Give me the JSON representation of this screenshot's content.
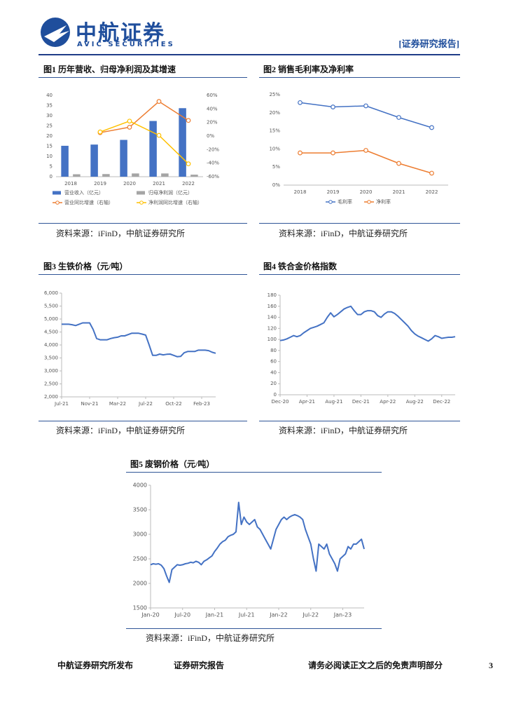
{
  "header": {
    "company": "中航证券",
    "company_en": "AVIC SECURITIES",
    "report_type": "[证券研究报告]"
  },
  "chart_data": [
    {
      "type": "bar",
      "title": "图1 历年营收、归母净利润及其增速",
      "source": "资料来源：iFinD，中航证券研究所",
      "categories": [
        "2018",
        "2019",
        "2020",
        "2021",
        "2022"
      ],
      "series": [
        {
          "name": "营业收入（亿元）",
          "type": "bar",
          "color": "#4472c4",
          "values": [
            15.2,
            15.8,
            18.1,
            27.4,
            33.7
          ]
        },
        {
          "name": "归母净利润（亿元）",
          "type": "bar",
          "color": "#a5a5a5",
          "values": [
            1.2,
            1.3,
            1.6,
            1.6,
            1.0
          ]
        },
        {
          "name": "营业同比增速（右轴）",
          "type": "line",
          "axis": "y2",
          "color": "#ed7d31",
          "values": [
            null,
            5,
            13,
            51,
            23
          ]
        },
        {
          "name": "净利润同比增速（右轴）",
          "type": "line",
          "axis": "y2",
          "color": "#ffc000",
          "values": [
            null,
            6,
            22,
            1,
            -41
          ]
        }
      ],
      "ylim": [
        0,
        40
      ],
      "yticks": [
        0,
        5,
        10,
        15,
        20,
        25,
        30,
        35,
        40
      ],
      "y2lim": [
        -60,
        60
      ],
      "y2ticks": [
        {
          "value": -60,
          "label": "-60%"
        },
        {
          "value": -40,
          "label": "-40%"
        },
        {
          "value": -20,
          "label": "-20%"
        },
        {
          "value": 0,
          "label": "0%"
        },
        {
          "value": 20,
          "label": "20%"
        },
        {
          "value": 40,
          "label": "40%"
        },
        {
          "value": 60,
          "label": "60%"
        }
      ],
      "legend": "bottom"
    },
    {
      "type": "line",
      "title": "图2 销售毛利率及净利率",
      "source": "资料来源：iFinD，中航证券研究所",
      "categories": [
        "2018",
        "2019",
        "2020",
        "2021",
        "2022"
      ],
      "series": [
        {
          "name": "毛利率",
          "color": "#4472c4",
          "values": [
            22.8,
            21.6,
            21.9,
            18.7,
            15.9
          ]
        },
        {
          "name": "净利率",
          "color": "#ed7d31",
          "values": [
            8.9,
            8.9,
            9.6,
            6.0,
            3.3
          ]
        }
      ],
      "ylim": [
        0,
        25
      ],
      "yticks": [
        {
          "value": 0,
          "label": "0%"
        },
        {
          "value": 5,
          "label": "5%"
        },
        {
          "value": 10,
          "label": "10%"
        },
        {
          "value": 15,
          "label": "15%"
        },
        {
          "value": 20,
          "label": "20%"
        },
        {
          "value": 25,
          "label": "25%"
        }
      ],
      "markers": true,
      "legend": "bottom"
    },
    {
      "type": "line",
      "title": "图3 生铁价格（元/吨）",
      "source": "资料来源：iFinD，中航证券研究所",
      "categories": [
        "Jul-21",
        null,
        null,
        null,
        null,
        null,
        null,
        null,
        "Nov-21",
        null,
        null,
        null,
        null,
        null,
        null,
        null,
        "Mar-22",
        null,
        null,
        null,
        null,
        null,
        null,
        null,
        "Jul-22",
        null,
        null,
        null,
        null,
        null,
        null,
        null,
        "Oct-22",
        null,
        null,
        null,
        null,
        null,
        null,
        null,
        "Feb-23",
        null,
        null,
        null,
        null
      ],
      "series": [
        {
          "color": "#4472c4",
          "values": [
            4800,
            4800,
            4800,
            4780,
            4750,
            4800,
            4850,
            4850,
            4850,
            4600,
            4250,
            4200,
            4200,
            4200,
            4250,
            4280,
            4300,
            4350,
            4350,
            4400,
            4450,
            4450,
            4450,
            4420,
            4380,
            4000,
            3600,
            3600,
            3650,
            3620,
            3640,
            3650,
            3600,
            3550,
            3560,
            3700,
            3750,
            3750,
            3750,
            3800,
            3800,
            3800,
            3780,
            3720,
            3680
          ]
        }
      ],
      "ylim": [
        2000,
        6000
      ],
      "yticks": [
        {
          "value": 2000,
          "label": "2,000"
        },
        {
          "value": 2500,
          "label": "2,500"
        },
        {
          "value": 3000,
          "label": "3,000"
        },
        {
          "value": 3500,
          "label": "3,500"
        },
        {
          "value": 4000,
          "label": "4,000"
        },
        {
          "value": 4500,
          "label": "4,500"
        },
        {
          "value": 5000,
          "label": "5,000"
        },
        {
          "value": 5500,
          "label": "5,500"
        },
        {
          "value": 6000,
          "label": "6,000"
        }
      ]
    },
    {
      "type": "line",
      "title": "图4 铁合金价格指数",
      "source": "资料来源：iFinD，中航证券研究所",
      "categories": [
        "Dec-20",
        null,
        null,
        null,
        null,
        null,
        null,
        null,
        "Apr-21",
        null,
        null,
        null,
        null,
        null,
        null,
        null,
        "Aug-21",
        null,
        null,
        null,
        null,
        null,
        null,
        null,
        "Dec-21",
        null,
        null,
        null,
        null,
        null,
        null,
        null,
        "Apr-22",
        null,
        null,
        null,
        null,
        null,
        null,
        null,
        "Aug-22",
        null,
        null,
        null,
        null,
        null,
        null,
        null,
        "Dec-22",
        null,
        null,
        null,
        null
      ],
      "series": [
        {
          "color": "#4472c4",
          "values": [
            98,
            99,
            101,
            104,
            107,
            105,
            107,
            112,
            116,
            120,
            122,
            124,
            127,
            130,
            140,
            148,
            141,
            145,
            150,
            155,
            158,
            160,
            152,
            145,
            145,
            150,
            152,
            152,
            150,
            143,
            140,
            146,
            150,
            150,
            147,
            142,
            136,
            130,
            124,
            116,
            110,
            106,
            103,
            100,
            97,
            101,
            107,
            105,
            102,
            103,
            104,
            104,
            105
          ]
        }
      ],
      "ylim": [
        0,
        180
      ],
      "yticks": [
        0,
        20,
        40,
        60,
        80,
        100,
        120,
        140,
        160,
        180
      ]
    },
    {
      "type": "line",
      "title": "图5 废钢价格（元/吨）",
      "source": "资料来源：iFinD，中航证券研究所",
      "categories": [
        "Jan-20",
        null,
        null,
        null,
        null,
        null,
        null,
        null,
        null,
        null,
        null,
        null,
        "Jul-20",
        null,
        null,
        null,
        null,
        null,
        null,
        null,
        null,
        null,
        null,
        null,
        "Jan-21",
        null,
        null,
        null,
        null,
        null,
        null,
        null,
        null,
        null,
        null,
        null,
        "Jul-21",
        null,
        null,
        null,
        null,
        null,
        null,
        null,
        null,
        null,
        null,
        null,
        "Jan-22",
        null,
        null,
        null,
        null,
        null,
        null,
        null,
        null,
        null,
        null,
        null,
        "Jul-22",
        null,
        null,
        null,
        null,
        null,
        null,
        null,
        null,
        null,
        null,
        null,
        "Jan-23",
        null,
        null,
        null,
        null,
        null,
        null,
        null,
        null
      ],
      "series": [
        {
          "color": "#4472c4",
          "values": [
            2380,
            2400,
            2390,
            2400,
            2370,
            2300,
            2150,
            2020,
            2280,
            2330,
            2380,
            2370,
            2380,
            2400,
            2410,
            2430,
            2420,
            2450,
            2430,
            2380,
            2450,
            2480,
            2520,
            2560,
            2650,
            2720,
            2800,
            2850,
            2880,
            2950,
            2980,
            3000,
            3050,
            3650,
            3200,
            3350,
            3250,
            3200,
            3250,
            3300,
            3150,
            3100,
            3000,
            2900,
            2800,
            2700,
            2900,
            3100,
            3200,
            3300,
            3350,
            3300,
            3350,
            3380,
            3400,
            3380,
            3350,
            3300,
            3100,
            2950,
            2800,
            2500,
            2250,
            2800,
            2750,
            2700,
            2800,
            2600,
            2500,
            2400,
            2250,
            2500,
            2550,
            2600,
            2750,
            2700,
            2800,
            2800,
            2850,
            2900,
            2700
          ]
        }
      ],
      "ylim": [
        1500,
        4000
      ],
      "yticks": [
        1500,
        2000,
        2500,
        3000,
        3500,
        4000
      ]
    }
  ],
  "footer": {
    "publisher": "中航证券研究所发布",
    "report_type": "证券研究报告",
    "disclaimer": "请务必阅读正文之后的免责声明部分",
    "page": "3"
  }
}
